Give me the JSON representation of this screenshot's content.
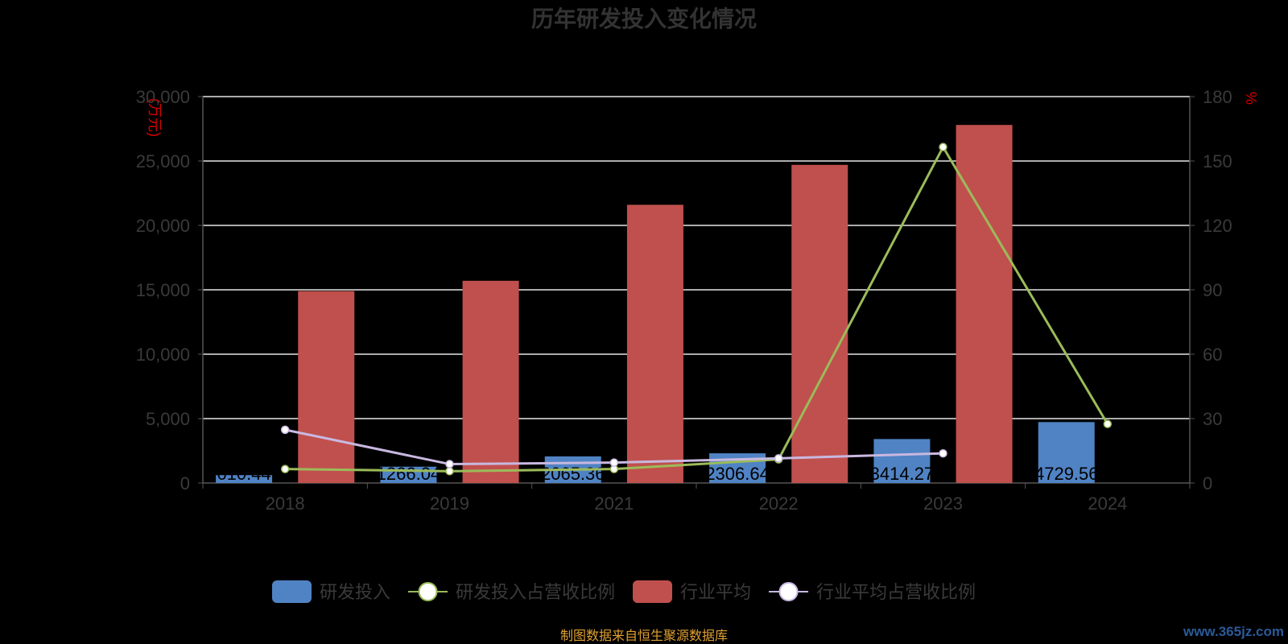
{
  "chart_data": {
    "type": "bar",
    "title": "历年研发投入变化情况",
    "categories": [
      "2018",
      "2019",
      "2021",
      "2022",
      "2023",
      "2024"
    ],
    "y_left": {
      "unit": "(万元)",
      "ylim": [
        0,
        30000
      ],
      "ticks": [
        "0",
        "5,000",
        "10,000",
        "15,000",
        "20,000",
        "25,000",
        "30,000"
      ]
    },
    "y_right": {
      "unit": "%",
      "ylim": [
        0,
        180
      ],
      "ticks": [
        "0",
        "30",
        "60",
        "90",
        "120",
        "150",
        "180"
      ]
    },
    "series": [
      {
        "name": "研发投入",
        "kind": "bar",
        "axis": "left",
        "color": "#5083c4",
        "values": [
          610.44,
          1266.04,
          2065.36,
          2306.64,
          3414.27,
          4729.56
        ],
        "labels": [
          "610.44",
          "1266.04",
          "2065.36",
          "2306.64",
          "3414.27",
          "4729.56"
        ]
      },
      {
        "name": "研发投入占营收比例",
        "kind": "line",
        "axis": "right",
        "color": "#9bbb59",
        "values": [
          6.5,
          5.5,
          6.5,
          11.0,
          156.5,
          27.5
        ]
      },
      {
        "name": "行业平均",
        "kind": "bar",
        "axis": "left",
        "color": "#c0504d",
        "values": [
          14900,
          15700,
          21600,
          24700,
          27800,
          null
        ]
      },
      {
        "name": "行业平均占营收比例",
        "kind": "line",
        "axis": "right",
        "color": "#c8b8e0",
        "values": [
          24.8,
          8.8,
          9.5,
          11.5,
          13.8,
          null
        ]
      }
    ],
    "grid": true,
    "legend_position": "bottom"
  },
  "footer": {
    "source": "制图数据来自恒生聚源数据库",
    "watermark": "www.365jz.com"
  }
}
